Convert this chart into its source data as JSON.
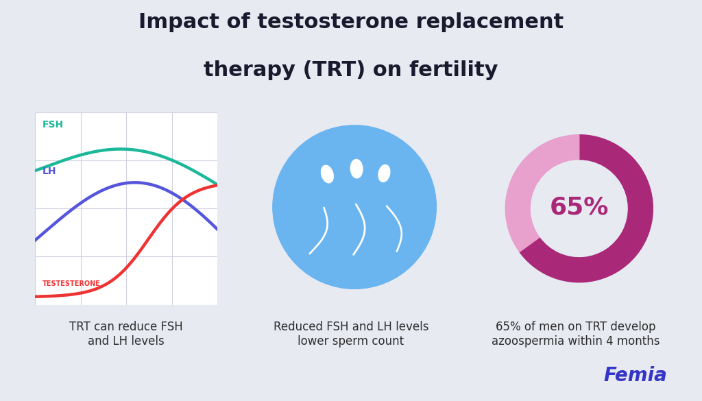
{
  "title_line1": "Impact of testosterone replacement",
  "title_line2": "therapy (TRT) on fertility",
  "bg_color": "#e8eaf2",
  "title_color": "#1a1a2e",
  "caption1": "TRT can reduce FSH\nand LH levels",
  "caption2": "Reduced FSH and LH levels\nlower sperm count",
  "caption3": "65% of men on TRT develop\nazoospermia within 4 months",
  "caption_color": "#2d2d2d",
  "femia_color": "#3535c8",
  "chart_bg": "#ffffff",
  "grid_color": "#d0d0e0",
  "fsh_color": "#1db89a",
  "lh_color": "#5555dd",
  "testo_color": "#ee3333",
  "fsh_label": "FSH",
  "lh_label": "LH",
  "testo_label": "TESTESTERONE",
  "donut_main": "#aa2878",
  "donut_light": "#e8a0cc",
  "donut_pct": 65,
  "donut_label": "65%",
  "donut_label_color": "#aa2878",
  "sperm_circle_color": "#6ab4f0",
  "panel_bg": "#e8eaf2"
}
